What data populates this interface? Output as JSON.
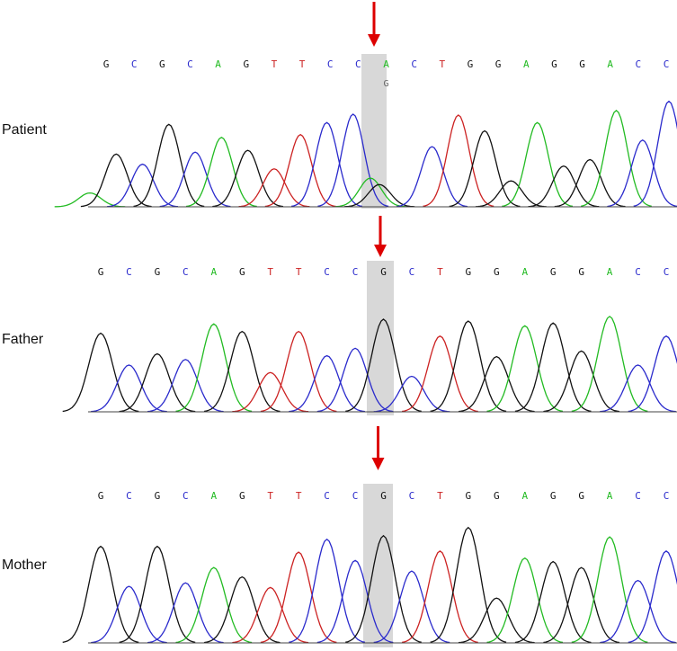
{
  "colors": {
    "A": "#22bb22",
    "C": "#2a2acc",
    "G": "#111111",
    "T": "#cc2222",
    "highlight": "#d8d8d8",
    "arrow": "#dd0000",
    "baseline": "#444444"
  },
  "panels": [
    {
      "label": "Patient",
      "sequence": [
        "G",
        "C",
        "G",
        "C",
        "A",
        "G",
        "T",
        "T",
        "C",
        "C",
        "A",
        "C",
        "T",
        "G",
        "G",
        "A",
        "G",
        "G",
        "A",
        "C",
        "C"
      ],
      "secondary_call": "G",
      "highlight_index": 10,
      "peaks": [
        {
          "base": "A",
          "height": 0.15
        },
        {
          "base": "G",
          "height": 0.57
        },
        {
          "base": "C",
          "height": 0.46
        },
        {
          "base": "G",
          "height": 0.89
        },
        {
          "base": "C",
          "height": 0.59
        },
        {
          "base": "A",
          "height": 0.75
        },
        {
          "base": "G",
          "height": 0.61
        },
        {
          "base": "T",
          "height": 0.41
        },
        {
          "base": "T",
          "height": 0.78
        },
        {
          "base": "C",
          "height": 0.91
        },
        {
          "base": "C",
          "height": 1.0
        },
        {
          "base": "A",
          "height": 0.31
        },
        {
          "base": "G",
          "height": 0.24
        },
        {
          "base": "C",
          "height": 0.65
        },
        {
          "base": "T",
          "height": 0.99
        },
        {
          "base": "G",
          "height": 0.82
        },
        {
          "base": "G",
          "height": 0.28
        },
        {
          "base": "A",
          "height": 0.91
        },
        {
          "base": "G",
          "height": 0.44
        },
        {
          "base": "G",
          "height": 0.51
        },
        {
          "base": "A",
          "height": 1.04
        },
        {
          "base": "C",
          "height": 0.72
        },
        {
          "base": "C",
          "height": 1.14
        }
      ]
    },
    {
      "label": "Father",
      "sequence": [
        "G",
        "C",
        "G",
        "C",
        "A",
        "G",
        "T",
        "T",
        "C",
        "C",
        "G",
        "C",
        "T",
        "G",
        "G",
        "A",
        "G",
        "G",
        "A",
        "C",
        "C"
      ],
      "secondary_call": "",
      "highlight_index": 10,
      "peaks": [
        {
          "base": "G",
          "height": 0.84
        },
        {
          "base": "C",
          "height": 0.5
        },
        {
          "base": "G",
          "height": 0.62
        },
        {
          "base": "C",
          "height": 0.56
        },
        {
          "base": "A",
          "height": 0.94
        },
        {
          "base": "G",
          "height": 0.86
        },
        {
          "base": "T",
          "height": 0.42
        },
        {
          "base": "T",
          "height": 0.86
        },
        {
          "base": "C",
          "height": 0.6
        },
        {
          "base": "C",
          "height": 0.68
        },
        {
          "base": "G",
          "height": 0.99
        },
        {
          "base": "C",
          "height": 0.38
        },
        {
          "base": "T",
          "height": 0.81
        },
        {
          "base": "G",
          "height": 0.97
        },
        {
          "base": "G",
          "height": 0.59
        },
        {
          "base": "A",
          "height": 0.92
        },
        {
          "base": "G",
          "height": 0.95
        },
        {
          "base": "G",
          "height": 0.65
        },
        {
          "base": "A",
          "height": 1.02
        },
        {
          "base": "C",
          "height": 0.5
        },
        {
          "base": "C",
          "height": 0.81
        }
      ]
    },
    {
      "label": "Mother",
      "sequence": [
        "G",
        "C",
        "G",
        "C",
        "A",
        "G",
        "T",
        "T",
        "C",
        "C",
        "G",
        "C",
        "T",
        "G",
        "G",
        "A",
        "G",
        "G",
        "A",
        "C",
        "C"
      ],
      "secondary_call": "",
      "highlight_index": 10,
      "peaks": [
        {
          "base": "G",
          "height": 0.82
        },
        {
          "base": "C",
          "height": 0.48
        },
        {
          "base": "G",
          "height": 0.82
        },
        {
          "base": "C",
          "height": 0.51
        },
        {
          "base": "A",
          "height": 0.64
        },
        {
          "base": "G",
          "height": 0.56
        },
        {
          "base": "T",
          "height": 0.47
        },
        {
          "base": "T",
          "height": 0.77
        },
        {
          "base": "C",
          "height": 0.88
        },
        {
          "base": "C",
          "height": 0.7
        },
        {
          "base": "G",
          "height": 0.91
        },
        {
          "base": "C",
          "height": 0.61
        },
        {
          "base": "T",
          "height": 0.78
        },
        {
          "base": "G",
          "height": 0.98
        },
        {
          "base": "G",
          "height": 0.38
        },
        {
          "base": "A",
          "height": 0.72
        },
        {
          "base": "G",
          "height": 0.69
        },
        {
          "base": "G",
          "height": 0.64
        },
        {
          "base": "A",
          "height": 0.9
        },
        {
          "base": "C",
          "height": 0.53
        },
        {
          "base": "C",
          "height": 0.78
        }
      ]
    }
  ]
}
